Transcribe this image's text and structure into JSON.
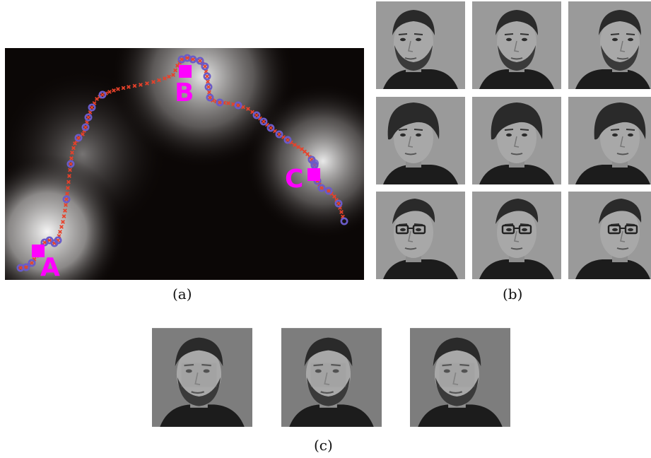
{
  "figure": {
    "captions": {
      "a": "(a)",
      "b": "(b)",
      "c": "(c)"
    },
    "markers": [
      {
        "label": "A",
        "color": "#ff00ff"
      },
      {
        "label": "B",
        "color": "#ff00ff"
      },
      {
        "label": "C",
        "color": "#ff00ff"
      }
    ],
    "colors": {
      "trajectory_cross": "#e8412a",
      "trajectory_circle": "#6a5bc8",
      "marker": "#ff00ff",
      "background_dark": "#0b0706",
      "background_light": "#f2f2f2"
    },
    "panel_b_rows": [
      {
        "person": "bearded man, dark short hair",
        "poses": [
          "left",
          "front",
          "right"
        ]
      },
      {
        "person": "young man, dark shaggy hair",
        "poses": [
          "left",
          "front",
          "right"
        ]
      },
      {
        "person": "man with glasses",
        "poses": [
          "left",
          "front",
          "right"
        ]
      }
    ],
    "panel_c_count": 3
  }
}
